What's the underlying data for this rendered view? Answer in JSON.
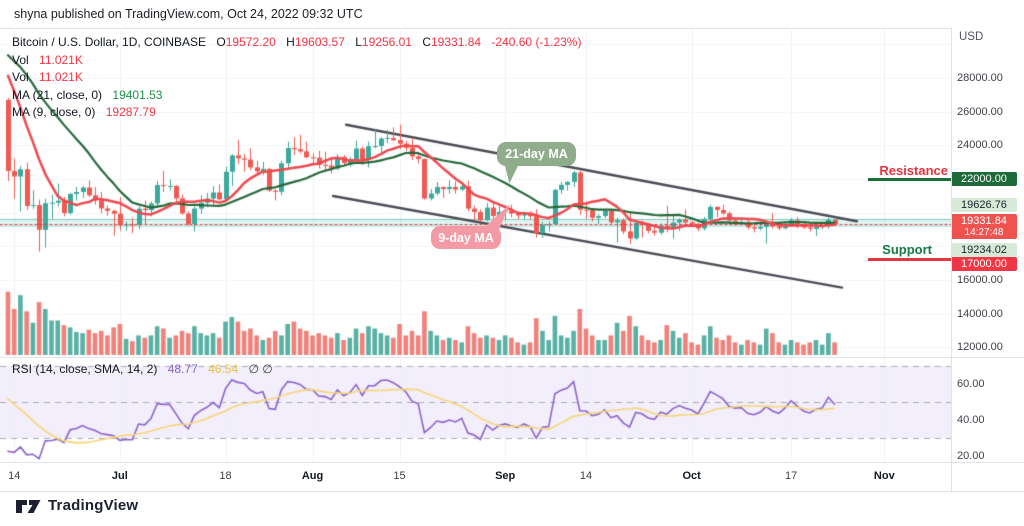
{
  "header": {
    "published_line": "shyna published on TradingView.com, Oct 24, 2022 09:32 UTC"
  },
  "legend": {
    "symbol_title": "Bitcoin / U.S. Dollar, 1D, COINBASE",
    "ohlc": {
      "o_label": "O",
      "o": "19572.20",
      "h_label": "H",
      "h": "19603.57",
      "l_label": "L",
      "l": "19256.01",
      "c_label": "C",
      "c": "19331.84",
      "change": "-240.60 (-1.23%)"
    },
    "vol_rows": [
      {
        "label": "Vol",
        "value": "11.021K"
      },
      {
        "label": "Vol",
        "value": "11.021K"
      }
    ],
    "ma_rows": [
      {
        "label": "MA (21, close, 0)",
        "value": "19401.53"
      },
      {
        "label": "MA (9, close, 0)",
        "value": "19287.79"
      }
    ]
  },
  "price_axis": {
    "unit": "USD",
    "ticks": [
      {
        "label": "28000.00",
        "price": 28000
      },
      {
        "label": "26000.00",
        "price": 26000
      },
      {
        "label": "24000.00",
        "price": 24000
      },
      {
        "label": "16000.00",
        "price": 16000
      },
      {
        "label": "14000.00",
        "price": 14000
      },
      {
        "label": "12000.00",
        "price": 12000
      }
    ],
    "badges": [
      {
        "text": "22000.00",
        "style": "green-solid"
      },
      {
        "text": "19626.76",
        "style": "green-pale"
      },
      {
        "text": "19331.84",
        "sub": "14:27:48",
        "style": "red-last"
      },
      {
        "text": "19234.02",
        "style": "green-pale"
      },
      {
        "text": "17000.00",
        "style": "red-solid"
      }
    ]
  },
  "levels": {
    "resistance_label": "Resistance",
    "support_label": "Support"
  },
  "callouts": {
    "ma21": "21-day MA",
    "ma9": "9-day MA"
  },
  "rsi_panel": {
    "legend_label": "RSI (14, close, SMA, 14, 2)",
    "value_main": "48.77",
    "value_smooth": "46.54",
    "values_extra": "∅ ∅",
    "ticks": [
      {
        "label": "60.00",
        "value": 60
      },
      {
        "label": "40.00",
        "value": 40
      },
      {
        "label": "20.00",
        "value": 20
      }
    ]
  },
  "time_axis": {
    "ticks": [
      {
        "label": "14",
        "day": 1,
        "bold": false
      },
      {
        "label": "Jul",
        "day": 18,
        "bold": true
      },
      {
        "label": "18",
        "day": 35,
        "bold": false
      },
      {
        "label": "Aug",
        "day": 49,
        "bold": true
      },
      {
        "label": "15",
        "day": 63,
        "bold": false
      },
      {
        "label": "Sep",
        "day": 80,
        "bold": true
      },
      {
        "label": "14",
        "day": 93,
        "bold": false
      },
      {
        "label": "Oct",
        "day": 110,
        "bold": true
      },
      {
        "label": "17",
        "day": 126,
        "bold": false
      },
      {
        "label": "Nov",
        "day": 141,
        "bold": true
      }
    ]
  },
  "footer": {
    "brand": "TradingView"
  },
  "colors": {
    "candle_up": "#3ba99c",
    "candle_down": "#ef5a52",
    "vol_up": "#58b1a4",
    "vol_down": "#ef827b",
    "ma21": "#25693a",
    "ma9": "#f0484f",
    "trendline": "#4a4d55",
    "rsi_line": "#8a63cc",
    "rsi_smooth": "#f6d678",
    "rsi_band": "#f3eefb",
    "rsi_dash": "#a8abb6",
    "zone_fill": "rgba(8,153,129,0.12)",
    "zone_edge": "rgba(8,153,129,0.45)",
    "last_price_line": "#f23645",
    "grid_h": "#f2f4f8",
    "grid_v": "#eef1f5"
  },
  "chart_data": {
    "type": "candlestick",
    "title": "Bitcoin / U.S. Dollar, 1D, COINBASE",
    "start_date": "2022-06-13",
    "end_date": "2022-10-24",
    "ylim": [
      12000,
      31000
    ],
    "last_price": 19331.84,
    "resistance": 22000.0,
    "support": 17000.0,
    "zone_top": 19626.76,
    "zone_bottom": 19234.02,
    "ma21_last": 19401.53,
    "ma9_last": 19287.79,
    "rsi": {
      "period": 14,
      "smoothing": "SMA",
      "smoothing_period": 14,
      "last": 48.77,
      "smooth_last": 46.54,
      "bands": [
        30,
        70
      ],
      "lines": [
        30,
        50,
        70
      ]
    },
    "pre_closes": [
      29450,
      29700,
      29900,
      30300,
      31300,
      31700,
      31000,
      30200,
      29650,
      29500,
      29850,
      30150,
      29900,
      30450,
      31350,
      30100,
      29050,
      28300,
      28450,
      26700,
      26350
    ],
    "candles": [
      [
        26700,
        26800,
        21900,
        22480
      ],
      [
        22480,
        23200,
        20850,
        22150
      ],
      [
        22150,
        22750,
        20100,
        22580
      ],
      [
        22580,
        22950,
        20200,
        20400
      ],
      [
        20400,
        21300,
        20250,
        20450
      ],
      [
        20450,
        20750,
        17710,
        18980
      ],
      [
        18980,
        20800,
        17950,
        20560
      ],
      [
        20560,
        21050,
        19650,
        20590
      ],
      [
        20590,
        21700,
        20400,
        20710
      ],
      [
        20710,
        20900,
        19800,
        19980
      ],
      [
        19980,
        21150,
        19900,
        21110
      ],
      [
        21110,
        21500,
        20750,
        21230
      ],
      [
        21230,
        21550,
        20900,
        21490
      ],
      [
        21490,
        21880,
        20950,
        21030
      ],
      [
        21030,
        21500,
        20500,
        20730
      ],
      [
        20730,
        21200,
        20000,
        20250
      ],
      [
        20250,
        20400,
        19850,
        20110
      ],
      [
        20110,
        20150,
        18650,
        19940
      ],
      [
        19940,
        20900,
        18950,
        19250
      ],
      [
        19250,
        19450,
        18950,
        19300
      ],
      [
        19300,
        19650,
        18800,
        19280
      ],
      [
        19280,
        20350,
        19050,
        20240
      ],
      [
        20240,
        20700,
        19350,
        20150
      ],
      [
        20150,
        20650,
        19800,
        20550
      ],
      [
        20550,
        21850,
        20300,
        21640
      ],
      [
        21640,
        22450,
        21250,
        21590
      ],
      [
        21590,
        21950,
        21350,
        21590
      ],
      [
        21590,
        21600,
        20650,
        20850
      ],
      [
        20850,
        21050,
        19900,
        19950
      ],
      [
        19950,
        20050,
        19250,
        19330
      ],
      [
        19330,
        20350,
        18900,
        20240
      ],
      [
        20240,
        21000,
        19950,
        20590
      ],
      [
        20590,
        21150,
        20350,
        20840
      ],
      [
        20840,
        21550,
        20450,
        21200
      ],
      [
        21200,
        21650,
        20750,
        20790
      ],
      [
        20790,
        22700,
        20760,
        22430
      ],
      [
        22430,
        23450,
        21600,
        23400
      ],
      [
        23400,
        24300,
        22900,
        23230
      ],
      [
        23230,
        23450,
        22450,
        23150
      ],
      [
        23150,
        23800,
        22550,
        22690
      ],
      [
        22690,
        23050,
        22300,
        22450
      ],
      [
        22450,
        23000,
        22250,
        22600
      ],
      [
        22600,
        22650,
        21250,
        21310
      ],
      [
        21310,
        21350,
        20750,
        21240
      ],
      [
        21240,
        23050,
        21050,
        22930
      ],
      [
        22930,
        24200,
        22550,
        23840
      ],
      [
        23840,
        24450,
        23450,
        23770
      ],
      [
        23770,
        24600,
        23550,
        23640
      ],
      [
        23640,
        24200,
        23250,
        23290
      ],
      [
        23290,
        23500,
        22850,
        23270
      ],
      [
        23270,
        23650,
        22650,
        22840
      ],
      [
        22840,
        23600,
        22450,
        22800
      ],
      [
        22800,
        23250,
        22350,
        22620
      ],
      [
        22620,
        23450,
        22550,
        23310
      ],
      [
        23310,
        23400,
        22850,
        22950
      ],
      [
        22950,
        23300,
        22750,
        23180
      ],
      [
        23180,
        24250,
        23150,
        23810
      ],
      [
        23810,
        23900,
        22850,
        23150
      ],
      [
        23150,
        24200,
        22700,
        23950
      ],
      [
        23950,
        24900,
        23850,
        23960
      ],
      [
        23960,
        24450,
        23600,
        24400
      ],
      [
        24400,
        24890,
        24150,
        24440
      ],
      [
        24440,
        25050,
        24250,
        24310
      ],
      [
        24310,
        25200,
        23800,
        24100
      ],
      [
        24100,
        24250,
        23690,
        23850
      ],
      [
        23850,
        24430,
        23150,
        23340
      ],
      [
        23340,
        23600,
        22950,
        23190
      ],
      [
        23190,
        23200,
        20800,
        20840
      ],
      [
        20840,
        21380,
        20750,
        21140
      ],
      [
        21140,
        21800,
        21050,
        21520
      ],
      [
        21520,
        21530,
        20900,
        21400
      ],
      [
        21400,
        21900,
        21150,
        21530
      ],
      [
        21530,
        21850,
        21150,
        21370
      ],
      [
        21370,
        21820,
        21310,
        21560
      ],
      [
        21560,
        21880,
        20100,
        20240
      ],
      [
        20240,
        20400,
        19550,
        20040
      ],
      [
        20040,
        20170,
        19520,
        19550
      ],
      [
        19550,
        20550,
        19550,
        20300
      ],
      [
        20300,
        20580,
        19580,
        19800
      ],
      [
        19800,
        20450,
        19800,
        20050
      ],
      [
        20050,
        20200,
        19560,
        20130
      ],
      [
        20130,
        20440,
        19750,
        19950
      ],
      [
        19950,
        20050,
        19650,
        19830
      ],
      [
        19830,
        20030,
        19590,
        19990
      ],
      [
        19990,
        20060,
        19630,
        19790
      ],
      [
        19790,
        20180,
        18540,
        18790
      ],
      [
        18790,
        19450,
        18530,
        19290
      ],
      [
        19290,
        19450,
        18900,
        19320
      ],
      [
        19320,
        21400,
        19300,
        21350
      ],
      [
        21350,
        21800,
        21150,
        21650
      ],
      [
        21650,
        21850,
        21350,
        21830
      ],
      [
        21830,
        22450,
        21550,
        22390
      ],
      [
        22390,
        22450,
        19900,
        20180
      ],
      [
        20180,
        20550,
        19650,
        20150
      ],
      [
        20150,
        20200,
        19500,
        19700
      ],
      [
        19700,
        19900,
        19350,
        19800
      ],
      [
        19800,
        20150,
        19690,
        20100
      ],
      [
        20100,
        20120,
        19350,
        19420
      ],
      [
        19420,
        19700,
        18250,
        19550
      ],
      [
        19550,
        19630,
        18750,
        18890
      ],
      [
        18890,
        19950,
        18150,
        18470
      ],
      [
        18470,
        19500,
        18400,
        19400
      ],
      [
        19400,
        19500,
        18550,
        19290
      ],
      [
        19290,
        19310,
        18800,
        18920
      ],
      [
        18920,
        19180,
        18650,
        18810
      ],
      [
        18810,
        19320,
        18700,
        19230
      ],
      [
        19230,
        20380,
        18850,
        19080
      ],
      [
        19080,
        19790,
        18480,
        19410
      ],
      [
        19410,
        19640,
        18920,
        19590
      ],
      [
        19590,
        20180,
        19150,
        19420
      ],
      [
        19420,
        19480,
        19150,
        19310
      ],
      [
        19310,
        19390,
        18920,
        19060
      ],
      [
        19060,
        19720,
        18960,
        19630
      ],
      [
        19630,
        20450,
        19500,
        20340
      ],
      [
        20340,
        20360,
        19750,
        20160
      ],
      [
        20160,
        20440,
        19870,
        19960
      ],
      [
        19960,
        20050,
        19320,
        19530
      ],
      [
        19530,
        19620,
        19240,
        19420
      ],
      [
        19420,
        19550,
        19320,
        19440
      ],
      [
        19440,
        19520,
        19020,
        19130
      ],
      [
        19130,
        19270,
        18850,
        19050
      ],
      [
        19050,
        19240,
        18980,
        19150
      ],
      [
        19150,
        19500,
        18190,
        19380
      ],
      [
        19380,
        19950,
        19070,
        19180
      ],
      [
        19180,
        19390,
        18980,
        19070
      ],
      [
        19070,
        19420,
        19020,
        19260
      ],
      [
        19260,
        19670,
        19170,
        19550
      ],
      [
        19550,
        19700,
        19090,
        19330
      ],
      [
        19330,
        19350,
        19060,
        19120
      ],
      [
        19120,
        19350,
        18900,
        19040
      ],
      [
        19040,
        19250,
        18650,
        19160
      ],
      [
        19160,
        19250,
        19030,
        19200
      ],
      [
        19200,
        19690,
        19070,
        19570
      ],
      [
        19570,
        19600,
        19260,
        19330
      ]
    ],
    "volumes_k": [
      55,
      40,
      52,
      38,
      28,
      46,
      40,
      30,
      30,
      26,
      24,
      20,
      19,
      22,
      19,
      21,
      17,
      24,
      27,
      14,
      12,
      17,
      15,
      17,
      25,
      23,
      15,
      17,
      21,
      19,
      25,
      19,
      17,
      19,
      15,
      29,
      33,
      29,
      21,
      23,
      17,
      13,
      15,
      21,
      17,
      27,
      29,
      23,
      21,
      17,
      19,
      17,
      15,
      19,
      13,
      15,
      23,
      19,
      25,
      23,
      19,
      17,
      15,
      27,
      17,
      21,
      17,
      38,
      21,
      17,
      13,
      15,
      13,
      11,
      25,
      19,
      15,
      17,
      15,
      13,
      17,
      15,
      11,
      9,
      11,
      32,
      21,
      13,
      34,
      17,
      15,
      21,
      40,
      23,
      17,
      13,
      13,
      17,
      28,
      21,
      34,
      25,
      17,
      13,
      11,
      13,
      26,
      21,
      15,
      19,
      11,
      9,
      17,
      25,
      15,
      13,
      17,
      11,
      9,
      13,
      11,
      9,
      23,
      19,
      11,
      9,
      13,
      11,
      9,
      11,
      13,
      9,
      19,
      11
    ],
    "trendlines": [
      {
        "x1_day": 54.4,
        "p1": 25220,
        "x2_day": 136.6,
        "p2": 19490
      },
      {
        "x1_day": 52.3,
        "p1": 20990,
        "x2_day": 134.2,
        "p2": 15550
      }
    ]
  }
}
